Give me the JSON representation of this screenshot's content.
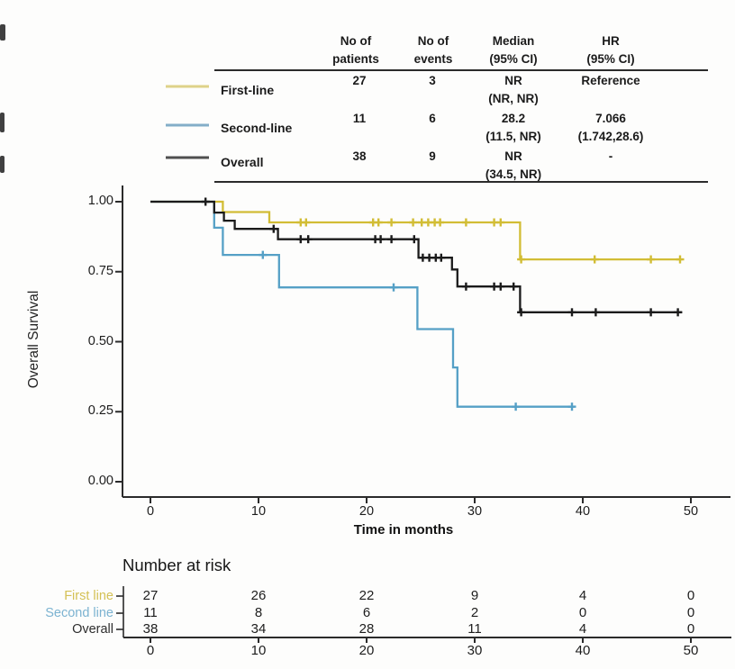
{
  "summary_table": {
    "headers": [
      {
        "line1": "No of",
        "line2": "patients"
      },
      {
        "line1": "No of",
        "line2": "events"
      },
      {
        "line1": "Median",
        "line2": "(95% CI)"
      },
      {
        "line1": "HR",
        "line2": "(95% CI)"
      }
    ],
    "rows": [
      {
        "label": "First-line",
        "patients": "27",
        "events": "3",
        "median": "NR",
        "median_ci": "(NR, NR)",
        "hr": "Reference",
        "hr_ci": ""
      },
      {
        "label": "Second-line",
        "patients": "11",
        "events": "6",
        "median": "28.2",
        "median_ci": "(11.5, NR)",
        "hr": "7.066",
        "hr_ci": "(1.742,28.6)"
      },
      {
        "label": "Overall",
        "patients": "38",
        "events": "9",
        "median": "NR",
        "median_ci": "(34.5, NR)",
        "hr": "-",
        "hr_ci": ""
      }
    ],
    "legend_swatch_colors": [
      "#ded289",
      "#83aec8",
      "#4f4f4f"
    ]
  },
  "chart_data": {
    "type": "line",
    "subtype": "kaplan-meier-step",
    "xlabel": "Time in months",
    "ylabel": "Overall Survival",
    "xlim": [
      0,
      50
    ],
    "ylim": [
      0,
      1
    ],
    "xticks": [
      0,
      10,
      20,
      30,
      40,
      50
    ],
    "ytick_labels": [
      "1.00",
      "0.75",
      "0.50",
      "0.25",
      "0.00"
    ],
    "ytick_values": [
      1,
      0.75,
      0.5,
      0.25,
      0
    ],
    "grid": false,
    "legend_position": "table-top",
    "series": [
      {
        "name": "First-line",
        "color": "#d2bd35",
        "steps": [
          [
            0,
            1
          ],
          [
            6.7,
            1
          ],
          [
            6.7,
            0.963
          ],
          [
            11.0,
            0.963
          ],
          [
            11.0,
            0.926
          ],
          [
            34.2,
            0.926
          ],
          [
            34.2,
            0.794
          ],
          [
            49.2,
            0.794
          ]
        ],
        "censors": [
          [
            13.9,
            0.926
          ],
          [
            14.4,
            0.926
          ],
          [
            20.6,
            0.926
          ],
          [
            21.1,
            0.926
          ],
          [
            22.3,
            0.926
          ],
          [
            24.3,
            0.926
          ],
          [
            25.1,
            0.926
          ],
          [
            25.7,
            0.926
          ],
          [
            26.3,
            0.926
          ],
          [
            26.8,
            0.926
          ],
          [
            29.2,
            0.926
          ],
          [
            31.8,
            0.926
          ],
          [
            32.4,
            0.926
          ],
          [
            34.3,
            0.794
          ],
          [
            41.1,
            0.794
          ],
          [
            46.3,
            0.794
          ],
          [
            49.0,
            0.794
          ]
        ]
      },
      {
        "name": "Second-line",
        "color": "#55a0c6",
        "steps": [
          [
            0,
            1
          ],
          [
            5.9,
            1
          ],
          [
            5.9,
            0.907
          ],
          [
            6.7,
            0.907
          ],
          [
            6.7,
            0.81
          ],
          [
            11.9,
            0.81
          ],
          [
            11.9,
            0.694
          ],
          [
            24.7,
            0.694
          ],
          [
            24.7,
            0.545
          ],
          [
            28.0,
            0.545
          ],
          [
            28.0,
            0.408
          ],
          [
            28.4,
            0.408
          ],
          [
            28.4,
            0.268
          ],
          [
            39.2,
            0.268
          ]
        ],
        "censors": [
          [
            10.4,
            0.81
          ],
          [
            22.5,
            0.694
          ],
          [
            33.8,
            0.268
          ],
          [
            39.0,
            0.268
          ]
        ]
      },
      {
        "name": "Overall",
        "color": "#1b1b1b",
        "steps": [
          [
            0,
            1
          ],
          [
            5.9,
            1
          ],
          [
            5.9,
            0.961
          ],
          [
            6.8,
            0.961
          ],
          [
            6.8,
            0.932
          ],
          [
            7.8,
            0.932
          ],
          [
            7.8,
            0.903
          ],
          [
            11.8,
            0.903
          ],
          [
            11.8,
            0.866
          ],
          [
            24.8,
            0.866
          ],
          [
            24.8,
            0.8
          ],
          [
            27.9,
            0.8
          ],
          [
            27.9,
            0.758
          ],
          [
            28.4,
            0.758
          ],
          [
            28.4,
            0.697
          ],
          [
            34.2,
            0.697
          ],
          [
            34.2,
            0.605
          ],
          [
            49.2,
            0.605
          ]
        ],
        "censors": [
          [
            5.1,
            1
          ],
          [
            11.4,
            0.903
          ],
          [
            13.9,
            0.866
          ],
          [
            14.6,
            0.866
          ],
          [
            20.8,
            0.866
          ],
          [
            21.3,
            0.866
          ],
          [
            22.3,
            0.866
          ],
          [
            24.4,
            0.866
          ],
          [
            25.2,
            0.8
          ],
          [
            25.8,
            0.8
          ],
          [
            26.4,
            0.8
          ],
          [
            26.9,
            0.8
          ],
          [
            29.2,
            0.697
          ],
          [
            31.8,
            0.697
          ],
          [
            32.4,
            0.697
          ],
          [
            33.6,
            0.697
          ],
          [
            34.3,
            0.605
          ],
          [
            39.0,
            0.605
          ],
          [
            41.2,
            0.605
          ],
          [
            46.3,
            0.605
          ],
          [
            48.8,
            0.605
          ]
        ]
      }
    ]
  },
  "risk_table": {
    "title": "Number at risk",
    "xticks": [
      "0",
      "10",
      "20",
      "30",
      "40",
      "50"
    ],
    "rows": [
      {
        "label": "First line",
        "color": "#d4c155",
        "values": [
          "27",
          "26",
          "22",
          "9",
          "4",
          "0"
        ]
      },
      {
        "label": "Second line",
        "color": "#7cb3d1",
        "values": [
          "11",
          "8",
          "6",
          "2",
          "0",
          "0"
        ]
      },
      {
        "label": "Overall",
        "color": "#2e2e2e",
        "values": [
          "38",
          "34",
          "28",
          "11",
          "4",
          "0"
        ]
      }
    ]
  }
}
